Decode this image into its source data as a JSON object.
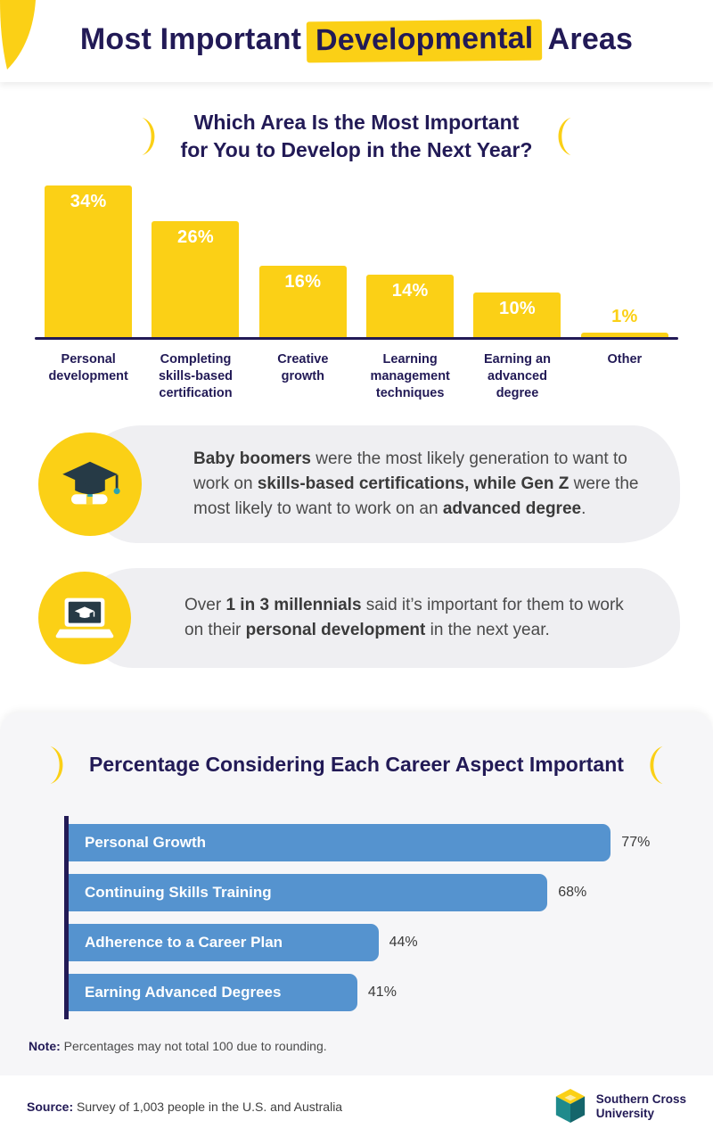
{
  "page": {
    "title_prefix": "Most Important",
    "title_highlight": "Developmental",
    "title_suffix": "Areas"
  },
  "colors": {
    "yellow": "#FBD016",
    "navy": "#221A56",
    "blue": "#5593CF",
    "callout_bg": "#EFEFF2",
    "section_bg": "#F6F6F8"
  },
  "chart_data": [
    {
      "type": "bar",
      "orientation": "vertical",
      "title": "Which Area Is the Most Important for You to Develop in the Next Year?",
      "title_line1": "Which Area Is the Most Important",
      "title_line2": "for You to Develop in the Next Year?",
      "categories": [
        "Personal development",
        "Completing skills-based certification",
        "Creative growth",
        "Learning management techniques",
        "Earning an advanced degree",
        "Other"
      ],
      "values": [
        34,
        26,
        16,
        14,
        10,
        1
      ],
      "value_labels": [
        "34%",
        "26%",
        "16%",
        "14%",
        "10%",
        "1%"
      ],
      "unit": "%",
      "ylim": [
        0,
        35
      ],
      "bar_color": "#FBD016",
      "grid": false,
      "legend": false
    },
    {
      "type": "bar",
      "orientation": "horizontal",
      "title": "Percentage Considering Each Career Aspect Important",
      "categories": [
        "Personal Growth",
        "Continuing Skills Training",
        "Adherence to a Career Plan",
        "Earning Advanced Degrees"
      ],
      "values": [
        77,
        68,
        44,
        41
      ],
      "value_labels": [
        "77%",
        "68%",
        "44%",
        "41%"
      ],
      "unit": "%",
      "xlim": [
        0,
        100
      ],
      "bar_color": "#5593CF",
      "grid": false,
      "legend": false
    }
  ],
  "callouts": [
    {
      "icon": "graduation-cap-icon",
      "segments": [
        {
          "text": "Baby boomers",
          "bold": true
        },
        {
          "text": " were the most likely generation to want to work on ",
          "bold": false
        },
        {
          "text": "skills-based certifications, while Gen Z",
          "bold": true
        },
        {
          "text": " were the most likely to want to work on an ",
          "bold": false
        },
        {
          "text": "advanced degree",
          "bold": true
        },
        {
          "text": ".",
          "bold": false
        }
      ]
    },
    {
      "icon": "laptop-graduation-icon",
      "segments": [
        {
          "text": "Over ",
          "bold": false
        },
        {
          "text": "1 in 3 millennials",
          "bold": true
        },
        {
          "text": " said it’s important for them to work on their ",
          "bold": false
        },
        {
          "text": "personal development",
          "bold": true
        },
        {
          "text": " in the next year.",
          "bold": false
        }
      ]
    }
  ],
  "note": {
    "label": "Note:",
    "text": " Percentages may not total 100 due to rounding."
  },
  "footer": {
    "source_label": "Source:",
    "source_text": " Survey of 1,003 people in the U.S. and Australia",
    "logo_line1": "Southern Cross",
    "logo_line2": "University"
  }
}
